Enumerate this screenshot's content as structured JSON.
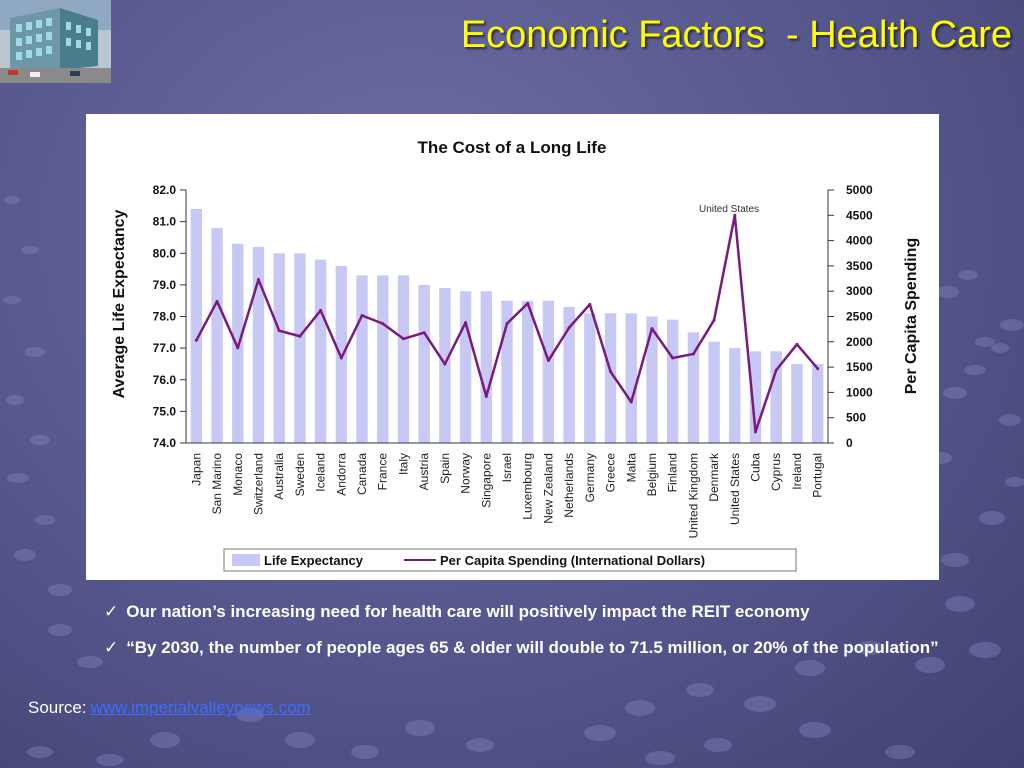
{
  "slide": {
    "title": "Economic Factors  - Health Care"
  },
  "chart_data": {
    "type": "bar",
    "title": "The Cost of a Long Life",
    "ylabel": "Average Life Expectancy",
    "y2label": "Per Capita Spending",
    "ylim": [
      74.0,
      82.0
    ],
    "y2lim": [
      0,
      5000
    ],
    "yticks": [
      "74.0",
      "75.0",
      "76.0",
      "77.0",
      "78.0",
      "79.0",
      "80.0",
      "81.0",
      "82.0"
    ],
    "y2ticks": [
      "0",
      "500",
      "1000",
      "1500",
      "2000",
      "2500",
      "3000",
      "3500",
      "4000",
      "4500",
      "5000"
    ],
    "categories": [
      "Japan",
      "San Marino",
      "Monaco",
      "Switzerland",
      "Australia",
      "Sweden",
      "Iceland",
      "Andorra",
      "Canada",
      "France",
      "Italy",
      "Austria",
      "Spain",
      "Norway",
      "Singapore",
      "Israel",
      "Luxembourg",
      "New Zealand",
      "Netherlands",
      "Germany",
      "Greece",
      "Malta",
      "Belgium",
      "Finland",
      "United Kingdom",
      "Denmark",
      "United States",
      "Cuba",
      "Cyprus",
      "Ireland",
      "Portugal"
    ],
    "series": [
      {
        "name": "Life Expectancy",
        "type": "bar",
        "axis": "left",
        "color": "#c8c8f4",
        "values": [
          81.4,
          80.8,
          80.3,
          80.2,
          80.0,
          80.0,
          79.8,
          79.6,
          79.3,
          79.3,
          79.3,
          79.0,
          78.9,
          78.8,
          78.8,
          78.5,
          78.5,
          78.5,
          78.3,
          78.1,
          78.1,
          78.1,
          78.0,
          77.9,
          77.5,
          77.2,
          77.0,
          76.9,
          76.9,
          76.5,
          76.5
        ]
      },
      {
        "name": "Per Capita Spending (International Dollars)",
        "type": "line",
        "axis": "right",
        "color": "#7b1a7e",
        "values": [
          2030,
          2800,
          1880,
          3230,
          2220,
          2110,
          2620,
          1680,
          2520,
          2360,
          2060,
          2180,
          1560,
          2380,
          920,
          2360,
          2760,
          1630,
          2280,
          2740,
          1410,
          810,
          2260,
          1680,
          1760,
          2430,
          4500,
          220,
          1440,
          1950,
          1470
        ]
      }
    ],
    "annotations": [
      "United States"
    ],
    "legend": "bottom"
  },
  "bullets": [
    "Our nation’s increasing need for health care will positively impact the REIT economy",
    "“By 2030, the number of people ages 65 & older will double to 71.5 million, or 20% of the population”"
  ],
  "check_symbol": "✓",
  "source": {
    "label": "Source:",
    "link_text": "www.imperialvalleynews.com"
  }
}
